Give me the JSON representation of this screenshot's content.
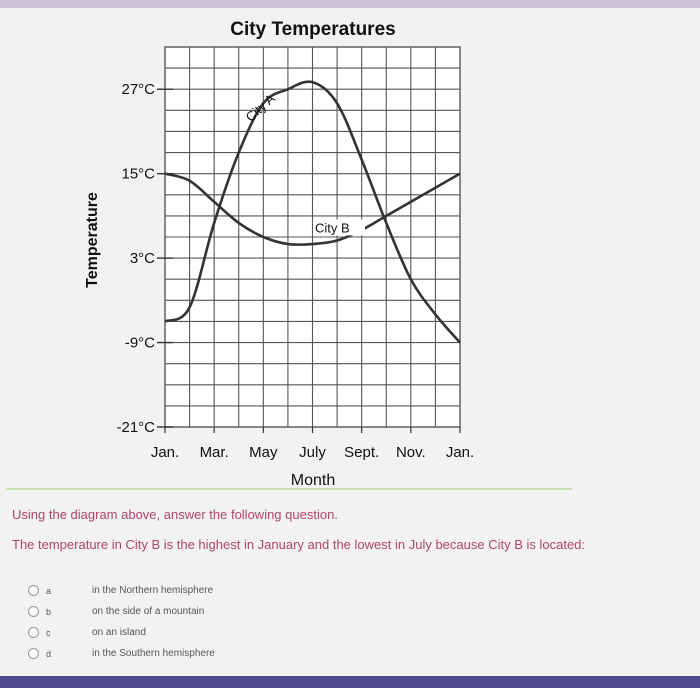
{
  "chart_data": {
    "type": "line",
    "title": "City Temperatures",
    "xlabel": "Month",
    "ylabel": "Temperature",
    "x_ticks": [
      "Jan.",
      "Mar.",
      "May",
      "July",
      "Sept.",
      "Nov.",
      "Jan."
    ],
    "y_ticks": [
      "27°C",
      "15°C",
      "3°C",
      "-9°C",
      "-21°C"
    ],
    "y_tick_values": [
      27,
      15,
      3,
      -9,
      -21
    ],
    "ylim": [
      -21,
      33
    ],
    "grid": true,
    "series": [
      {
        "name": "City A",
        "color": "#333333",
        "x": [
          0,
          0.5,
          1,
          1.5,
          2,
          2.5,
          3,
          3.5,
          4,
          4.5,
          5,
          5.5,
          6
        ],
        "y": [
          -6,
          -4,
          8,
          18,
          25,
          27,
          28,
          25,
          17,
          8,
          0,
          -5,
          -9
        ]
      },
      {
        "name": "City B",
        "color": "#333333",
        "x": [
          0,
          0.5,
          1,
          1.5,
          2,
          2.5,
          3,
          3.5,
          4,
          4.5,
          5,
          5.5,
          6
        ],
        "y": [
          15,
          14,
          11,
          8,
          6,
          5,
          5,
          5.5,
          7,
          9,
          11,
          13,
          15
        ]
      }
    ]
  },
  "question": {
    "instruction": "Using the diagram above, answer the following question.",
    "text": "The temperature in City B is the highest in January and the lowest in July because City B is located:"
  },
  "choices": [
    {
      "letter": "a",
      "text": "in the Northern hemisphere"
    },
    {
      "letter": "b",
      "text": "on the side of a mountain"
    },
    {
      "letter": "c",
      "text": "on an island"
    },
    {
      "letter": "d",
      "text": "in the Southern hemisphere"
    }
  ]
}
